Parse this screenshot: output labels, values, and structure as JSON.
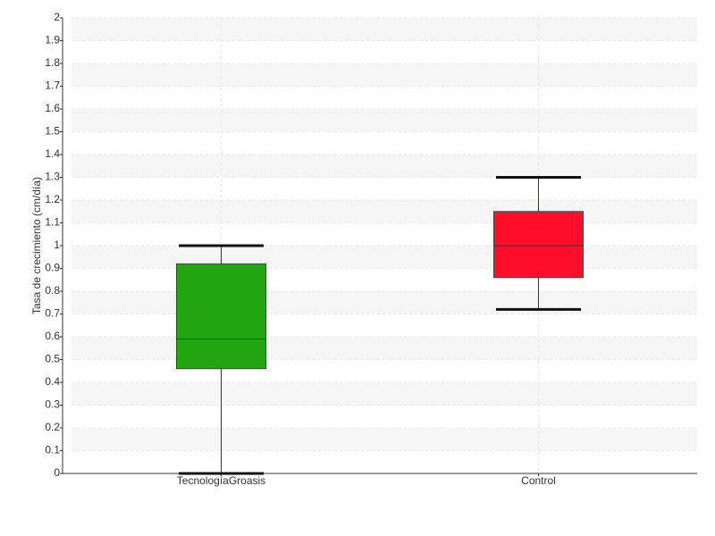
{
  "chart_data": {
    "type": "box",
    "y_label": "Tasa de crecimiento (cm/día)",
    "categories": [
      "TecnologíaGroasis",
      "Control"
    ],
    "boxes": [
      {
        "min": 0,
        "q1": 0.46,
        "median": 0.59,
        "q3": 0.92,
        "max": 1.0,
        "color": "#22a511"
      },
      {
        "min": 0.72,
        "q1": 0.86,
        "median": 1.0,
        "q3": 1.15,
        "max": 1.3,
        "color": "#ff0d2a"
      }
    ],
    "ylim": [
      0,
      2
    ],
    "yticks": [
      0,
      0.1,
      0.2,
      0.3,
      0.4,
      0.5,
      0.6,
      0.7,
      0.8,
      0.9,
      1,
      1.1,
      1.2,
      1.3,
      1.4,
      1.5,
      1.6,
      1.7,
      1.8,
      1.9,
      2
    ],
    "grid": true
  }
}
